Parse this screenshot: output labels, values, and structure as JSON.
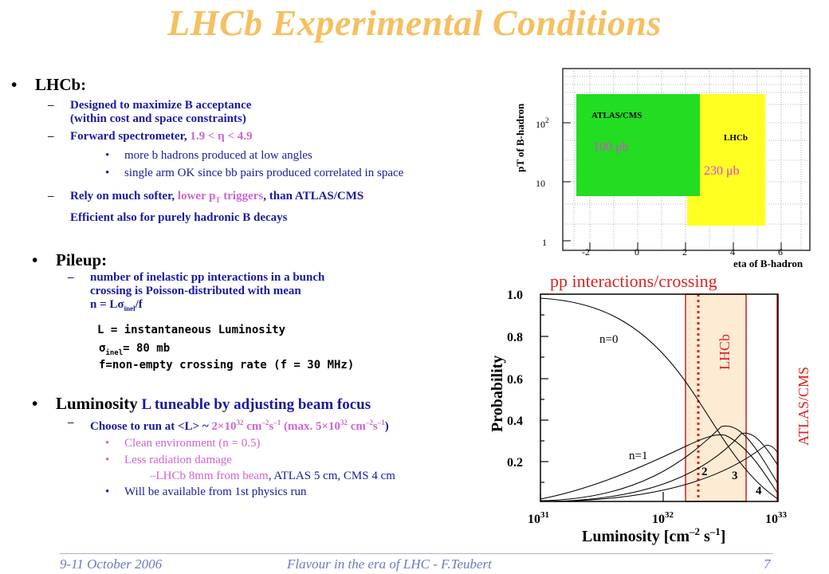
{
  "title": "LHCb Experimental Conditions",
  "lhcb": {
    "heading": "LHCb:",
    "item1_line1": "Designed to maximize B acceptance",
    "item1_line2": "(within cost and space constraints)",
    "item2_pre": "Forward spectrometer, ",
    "item2_eta": "1.9 < η < 4.9",
    "sub1": "more b hadrons produced at low angles",
    "sub2": "single arm OK since bb pairs produced correlated in space",
    "item3_pre": "Rely on much softer, ",
    "item3_mag": "lower p",
    "item3_magsub": "T",
    "item3_mag2": " triggers",
    "item3_post": ", than ATLAS/CMS",
    "item3_line2": "Efficient also for purely hadronic B decays"
  },
  "pileup": {
    "heading": "Pileup:",
    "line1": "number of inelastic pp interactions in a bunch",
    "line2": "crossing is Poisson-distributed with mean",
    "line3_pre": "n = Lσ",
    "line3_sub": "inel",
    "line3_post": "/f",
    "def1": "L = instantaneous Luminosity",
    "def2_pre": "σ",
    "def2_sub": "inel",
    "def2_post": "= 80 mb",
    "def3": "f=non-empty crossing rate (f = 30 MHz)"
  },
  "luminosity": {
    "heading": "Luminosity",
    "heading_rest": " L tuneable by adjusting beam focus",
    "choose_pre": "Choose to run at <L> ~ ",
    "choose_val": "2×10",
    "choose_exp": "32",
    "choose_unit": " cm",
    "choose_unit_exp": "–2",
    "choose_s": "s",
    "choose_s_exp": "–1",
    "choose_max": " (max. 5×10",
    "choose_max_exp": "32",
    "choose_max_unit": " cm",
    "choose_max_unit_exp": "–2",
    "choose_max_s": "s",
    "choose_max_s_exp": "–1",
    "choose_close": ")",
    "sub1": "Clean environment (n = 0.5)",
    "sub2": "Less radiation damage",
    "sub2_detail_pre": "–LHCb 8mm from beam",
    "sub2_detail_post": ", ATLAS 5 cm, CMS 4 cm",
    "sub3": "Will be available from 1st physics run"
  },
  "acceptance_plot": {
    "ylabel": "pT of B-hadron",
    "xlabel": "eta of B-hadron",
    "yticks": [
      "10",
      "10",
      "1"
    ],
    "ytick_exp": "2",
    "xticks": [
      "-2",
      "0",
      "2",
      "4",
      "6"
    ],
    "atlas_label": "ATLAS/CMS",
    "atlas_xsec": "100 μb",
    "lhcb_label": "LHCb",
    "lhcb_xsec": "230 μb",
    "colors": {
      "atlas": "#22dd22",
      "lhcb": "#ffff22",
      "xsec": "#dd44dd"
    }
  },
  "pileup_plot": {
    "title": "pp interactions/crossing",
    "ylabel": "Probability",
    "xlabel": "Luminosity [cm",
    "xlabel_exp1": "–2",
    "xlabel_mid": " s",
    "xlabel_exp2": "–1",
    "xlabel_close": "]",
    "yticks": [
      "1.0",
      "0.8",
      "0.6",
      "0.4",
      "0.2"
    ],
    "xticks": [
      "10",
      "10",
      "10"
    ],
    "xtick_exps": [
      "31",
      "32",
      "33"
    ],
    "curve_labels": [
      "n=0",
      "n=1",
      "2",
      "3",
      "4"
    ],
    "lhcb_band": "LHCb",
    "atlas_band": "ATLAS/CMS",
    "colors": {
      "band_fill": "#fdebd3",
      "band_line": "#cc2222",
      "dotted": "#dd2222",
      "title": "#dd2222"
    }
  },
  "footer": {
    "date": "9-11 October 2006",
    "event": "Flavour in the era of LHC - F.Teubert",
    "page": "7"
  }
}
